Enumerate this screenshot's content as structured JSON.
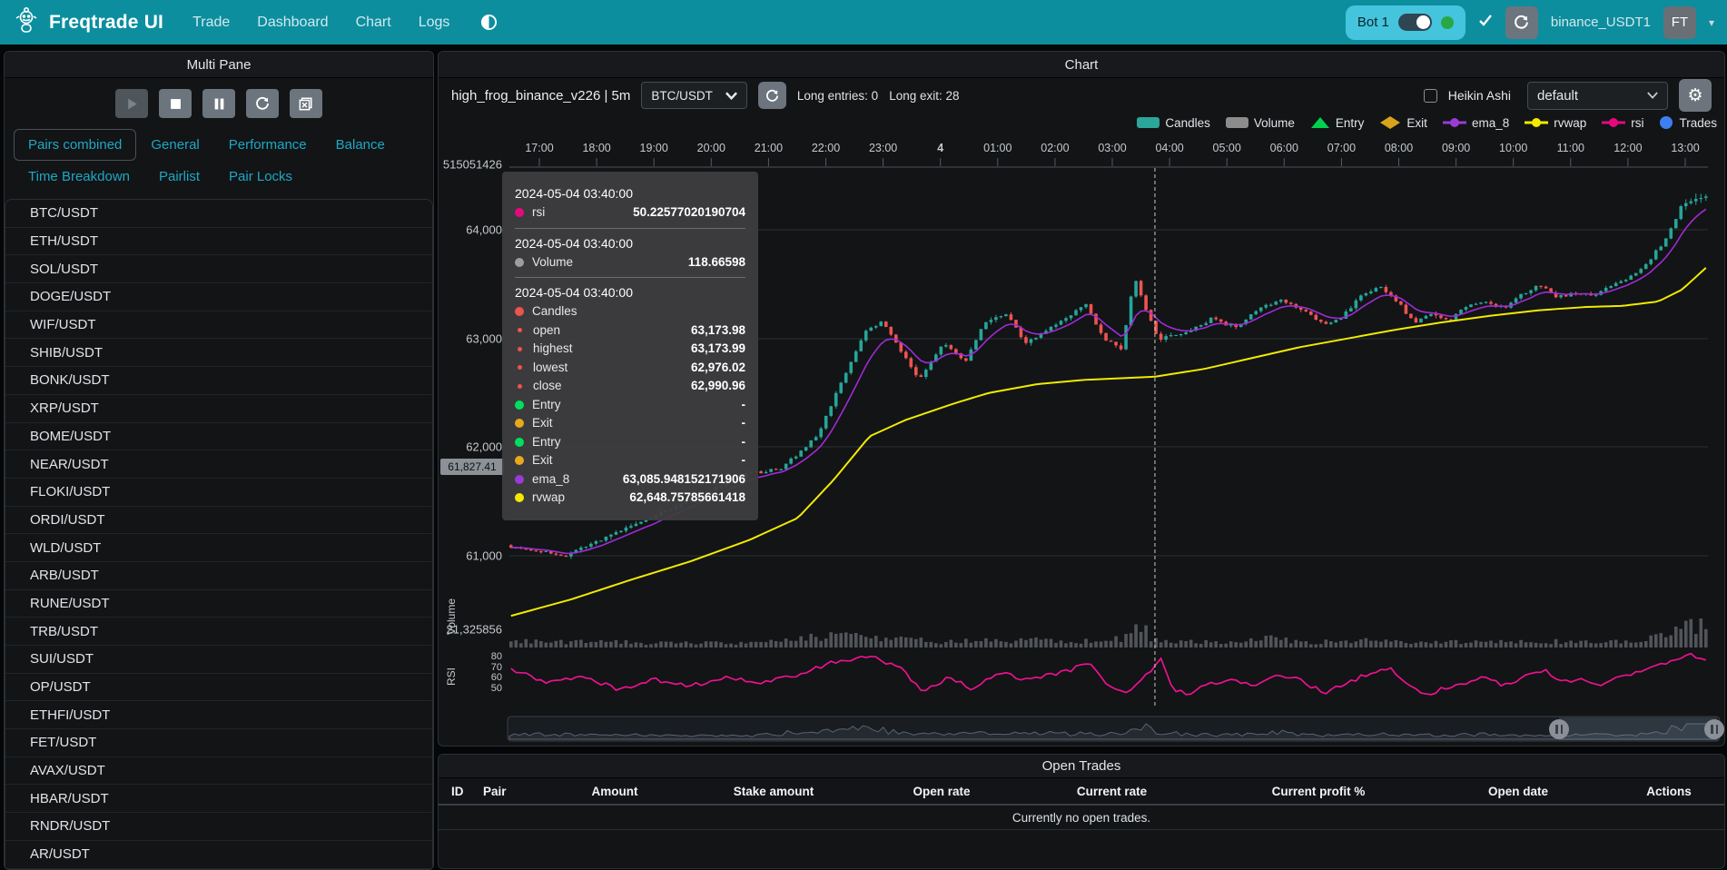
{
  "navbar": {
    "brand": "Freqtrade UI",
    "links": [
      "Trade",
      "Dashboard",
      "Chart",
      "Logs"
    ],
    "bot": {
      "label": "Bot 1",
      "toggle_on": true,
      "status_dot_color": "#28a745"
    },
    "exchange_account": "binance_USDT1",
    "avatar_initials": "FT",
    "colors": {
      "navbar_bg": "#0C8E9E",
      "bot_box_bg": "#45C4DE"
    }
  },
  "icons": {
    "robot-logo": "robot",
    "theme-toggle": "half-circle",
    "online-check": "check",
    "reload": "circular-arrow",
    "settings-gear": "gear",
    "dropdown-caret": "chevron-down",
    "play": "triangle-right",
    "stop": "square",
    "pause": "double-bar",
    "loop": "circular-arrow",
    "remove-chart": "box-with-x"
  },
  "sidebar": {
    "title": "Multi Pane",
    "controls": [
      "play",
      "stop",
      "pause",
      "loop",
      "remove-chart"
    ],
    "tabs_row1": [
      "Pairs combined",
      "General",
      "Performance",
      "Balance"
    ],
    "active_tab": "Pairs combined",
    "tabs_row2": [
      "Time Breakdown",
      "Pairlist",
      "Pair Locks"
    ],
    "pairs": [
      "BTC/USDT",
      "ETH/USDT",
      "SOL/USDT",
      "DOGE/USDT",
      "WIF/USDT",
      "SHIB/USDT",
      "BONK/USDT",
      "XRP/USDT",
      "BOME/USDT",
      "NEAR/USDT",
      "FLOKI/USDT",
      "ORDI/USDT",
      "WLD/USDT",
      "ARB/USDT",
      "RUNE/USDT",
      "TRB/USDT",
      "SUI/USDT",
      "OP/USDT",
      "ETHFI/USDT",
      "FET/USDT",
      "AVAX/USDT",
      "HBAR/USDT",
      "RNDR/USDT",
      "AR/USDT"
    ]
  },
  "chart": {
    "panel_title": "Chart",
    "strategy": "high_frog_binance_v226 | 5m",
    "pair_select": "BTC/USDT",
    "entries_label": "Long entries: 0",
    "exits_label": "Long exit: 28",
    "heikin_ashi_label": "Heikin Ashi",
    "plot_config_select": "default",
    "legend": [
      {
        "name": "Candles",
        "shape": "rect",
        "color": "#2CA59A"
      },
      {
        "name": "Volume",
        "shape": "rect",
        "color": "#8c8c8c"
      },
      {
        "name": "Entry",
        "shape": "triangle",
        "color": "#00D14F"
      },
      {
        "name": "Exit",
        "shape": "diamond",
        "color": "#D8A21B"
      },
      {
        "name": "ema_8",
        "shape": "line-dot",
        "color": "#9A3BD6"
      },
      {
        "name": "rvwap",
        "shape": "line-dot",
        "color": "#F3EA00"
      },
      {
        "name": "rsi",
        "shape": "line-dot",
        "color": "#E6097E"
      },
      {
        "name": "Trades",
        "shape": "circle",
        "color": "#3D7FF0"
      }
    ],
    "tooltip": {
      "sections": [
        {
          "date": "2024-05-04 03:40:00",
          "rows": [
            {
              "label": "rsi",
              "value": "50.22577020190704",
              "dot": "#E6097E"
            }
          ]
        },
        {
          "date": "2024-05-04 03:40:00",
          "rows": [
            {
              "label": "Volume",
              "value": "118.66598",
              "dot": "#9e9e9e"
            }
          ]
        },
        {
          "date": "2024-05-04 03:40:00",
          "rows": [
            {
              "label": "Candles",
              "value": "",
              "dot": "#EF5350"
            },
            {
              "label": "open",
              "value": "63,173.98",
              "dot": "#EF5350",
              "sub": true
            },
            {
              "label": "highest",
              "value": "63,173.99",
              "dot": "#EF5350",
              "sub": true
            },
            {
              "label": "lowest",
              "value": "62,976.02",
              "dot": "#EF5350",
              "sub": true
            },
            {
              "label": "close",
              "value": "62,990.96",
              "dot": "#EF5350",
              "sub": true
            },
            {
              "label": "Entry",
              "value": "-",
              "dot": "#00E05E"
            },
            {
              "label": "Exit",
              "value": "-",
              "dot": "#E8A91C"
            },
            {
              "label": "Entry",
              "value": "-",
              "dot": "#00E05E"
            },
            {
              "label": "Exit",
              "value": "-",
              "dot": "#E8A91C"
            },
            {
              "label": "ema_8",
              "value": "63,085.948152171906",
              "dot": "#9A3BD6"
            },
            {
              "label": "rvwap",
              "value": "62,648.75785661418",
              "dot": "#F3EA00"
            }
          ]
        }
      ]
    }
  },
  "chart_data": {
    "type": "candlestick",
    "pair": "BTC/USDT",
    "timeframe": "5m",
    "x_labels": [
      "17:00",
      "18:00",
      "19:00",
      "20:00",
      "21:00",
      "22:00",
      "23:00",
      "4",
      "01:00",
      "02:00",
      "03:00",
      "04:00",
      "05:00",
      "06:00",
      "07:00",
      "08:00",
      "09:00",
      "10:00",
      "11:00",
      "12:00",
      "13:00"
    ],
    "y_axis": {
      "price_ticks": [
        "64,000",
        "63,000",
        "62,000",
        "61,000"
      ],
      "top_label": "515051426",
      "volume_tick": "21,325856",
      "last_price_tag": "61,827.41",
      "rsi_ticks": [
        "80",
        "70",
        "60",
        "50"
      ],
      "pane_labels": [
        "Volume",
        "RSI"
      ]
    },
    "series_colors": {
      "up": "#26A69A",
      "down": "#EF5350",
      "ema_8": "#A02BD6",
      "rvwap": "#F3EA00",
      "rsi": "#ED1190",
      "volume": "#8f939b"
    },
    "crosshair": {
      "time": "2024-05-04 03:40:00",
      "x_frac": 0.5386
    },
    "hovered_candle": {
      "open": 63173.98,
      "high": 63173.99,
      "low": 62976.02,
      "close": 62990.96,
      "volume": 118.66598,
      "rsi": 50.22577020190704,
      "ema_8": 63085.948152171906,
      "rvwap": 62648.75785661418
    },
    "price_path": [
      [
        0,
        61100
      ],
      [
        0.05,
        61000
      ],
      [
        0.1,
        61250
      ],
      [
        0.15,
        61500
      ],
      [
        0.2,
        61750
      ],
      [
        0.23,
        61800
      ],
      [
        0.26,
        62100
      ],
      [
        0.285,
        62700
      ],
      [
        0.3,
        63050
      ],
      [
        0.315,
        63150
      ],
      [
        0.33,
        62900
      ],
      [
        0.345,
        62620
      ],
      [
        0.365,
        62950
      ],
      [
        0.385,
        62800
      ],
      [
        0.4,
        63150
      ],
      [
        0.42,
        63220
      ],
      [
        0.435,
        62950
      ],
      [
        0.45,
        63050
      ],
      [
        0.47,
        63200
      ],
      [
        0.485,
        63320
      ],
      [
        0.5,
        63000
      ],
      [
        0.515,
        62900
      ],
      [
        0.526,
        63560
      ],
      [
        0.539,
        63174
      ],
      [
        0.546,
        62990
      ],
      [
        0.575,
        63080
      ],
      [
        0.59,
        63180
      ],
      [
        0.61,
        63100
      ],
      [
        0.63,
        63280
      ],
      [
        0.65,
        63350
      ],
      [
        0.67,
        63250
      ],
      [
        0.685,
        63120
      ],
      [
        0.7,
        63200
      ],
      [
        0.715,
        63380
      ],
      [
        0.73,
        63480
      ],
      [
        0.745,
        63350
      ],
      [
        0.76,
        63150
      ],
      [
        0.775,
        63220
      ],
      [
        0.79,
        63180
      ],
      [
        0.805,
        63300
      ],
      [
        0.82,
        63330
      ],
      [
        0.835,
        63280
      ],
      [
        0.85,
        63400
      ],
      [
        0.865,
        63500
      ],
      [
        0.88,
        63380
      ],
      [
        0.895,
        63420
      ],
      [
        0.91,
        63400
      ],
      [
        0.925,
        63480
      ],
      [
        0.94,
        63560
      ],
      [
        0.955,
        63700
      ],
      [
        0.97,
        63900
      ],
      [
        0.985,
        64250
      ],
      [
        1,
        64300
      ]
    ],
    "rvwap_path": [
      [
        0,
        60450
      ],
      [
        0.05,
        60600
      ],
      [
        0.1,
        60780
      ],
      [
        0.15,
        60950
      ],
      [
        0.2,
        61150
      ],
      [
        0.24,
        61350
      ],
      [
        0.27,
        61700
      ],
      [
        0.3,
        62100
      ],
      [
        0.33,
        62250
      ],
      [
        0.37,
        62400
      ],
      [
        0.4,
        62500
      ],
      [
        0.44,
        62580
      ],
      [
        0.48,
        62620
      ],
      [
        0.539,
        62649
      ],
      [
        0.58,
        62720
      ],
      [
        0.62,
        62820
      ],
      [
        0.66,
        62920
      ],
      [
        0.7,
        63000
      ],
      [
        0.74,
        63080
      ],
      [
        0.78,
        63150
      ],
      [
        0.82,
        63210
      ],
      [
        0.86,
        63260
      ],
      [
        0.9,
        63290
      ],
      [
        0.93,
        63300
      ],
      [
        0.96,
        63340
      ],
      [
        0.98,
        63450
      ],
      [
        1,
        63650
      ]
    ],
    "rsi_path": [
      [
        0,
        68
      ],
      [
        0.03,
        55
      ],
      [
        0.06,
        62
      ],
      [
        0.09,
        48
      ],
      [
        0.12,
        58
      ],
      [
        0.15,
        52
      ],
      [
        0.18,
        60
      ],
      [
        0.21,
        55
      ],
      [
        0.24,
        62
      ],
      [
        0.27,
        75
      ],
      [
        0.3,
        80
      ],
      [
        0.325,
        70
      ],
      [
        0.345,
        45
      ],
      [
        0.365,
        60
      ],
      [
        0.385,
        50
      ],
      [
        0.41,
        65
      ],
      [
        0.43,
        58
      ],
      [
        0.45,
        62
      ],
      [
        0.47,
        68
      ],
      [
        0.485,
        75
      ],
      [
        0.5,
        52
      ],
      [
        0.515,
        45
      ],
      [
        0.53,
        60
      ],
      [
        0.545,
        78
      ],
      [
        0.553,
        50.2
      ],
      [
        0.565,
        44
      ],
      [
        0.58,
        52
      ],
      [
        0.6,
        58
      ],
      [
        0.62,
        52
      ],
      [
        0.64,
        62
      ],
      [
        0.66,
        58
      ],
      [
        0.68,
        45
      ],
      [
        0.7,
        55
      ],
      [
        0.72,
        65
      ],
      [
        0.735,
        70
      ],
      [
        0.75,
        55
      ],
      [
        0.765,
        42
      ],
      [
        0.78,
        50
      ],
      [
        0.8,
        55
      ],
      [
        0.815,
        60
      ],
      [
        0.83,
        52
      ],
      [
        0.85,
        62
      ],
      [
        0.865,
        68
      ],
      [
        0.88,
        55
      ],
      [
        0.895,
        58
      ],
      [
        0.91,
        52
      ],
      [
        0.925,
        60
      ],
      [
        0.94,
        65
      ],
      [
        0.955,
        70
      ],
      [
        0.97,
        75
      ],
      [
        0.985,
        82
      ],
      [
        1,
        78
      ]
    ],
    "volume_profile": [
      [
        0,
        1.2
      ],
      [
        0.1,
        1
      ],
      [
        0.2,
        0.8
      ],
      [
        0.26,
        2.2
      ],
      [
        0.29,
        2.8
      ],
      [
        0.32,
        1.8
      ],
      [
        0.36,
        1.2
      ],
      [
        0.42,
        1.5
      ],
      [
        0.47,
        1.3
      ],
      [
        0.5,
        1.2
      ],
      [
        0.52,
        2.5
      ],
      [
        0.527,
        5
      ],
      [
        0.534,
        2
      ],
      [
        0.56,
        1.2
      ],
      [
        0.6,
        1
      ],
      [
        0.63,
        1.8
      ],
      [
        0.67,
        1
      ],
      [
        0.72,
        1.4
      ],
      [
        0.76,
        1
      ],
      [
        0.8,
        1.2
      ],
      [
        0.84,
        1
      ],
      [
        0.88,
        1.3
      ],
      [
        0.92,
        1
      ],
      [
        0.95,
        1.5
      ],
      [
        0.97,
        3
      ],
      [
        0.985,
        4.5
      ],
      [
        1,
        5
      ]
    ]
  },
  "open_trades": {
    "title": "Open Trades",
    "columns": [
      "ID",
      "Pair",
      "Amount",
      "Stake amount",
      "Open rate",
      "Current rate",
      "Current profit %",
      "Open date",
      "Actions"
    ],
    "empty_message": "Currently no open trades."
  }
}
